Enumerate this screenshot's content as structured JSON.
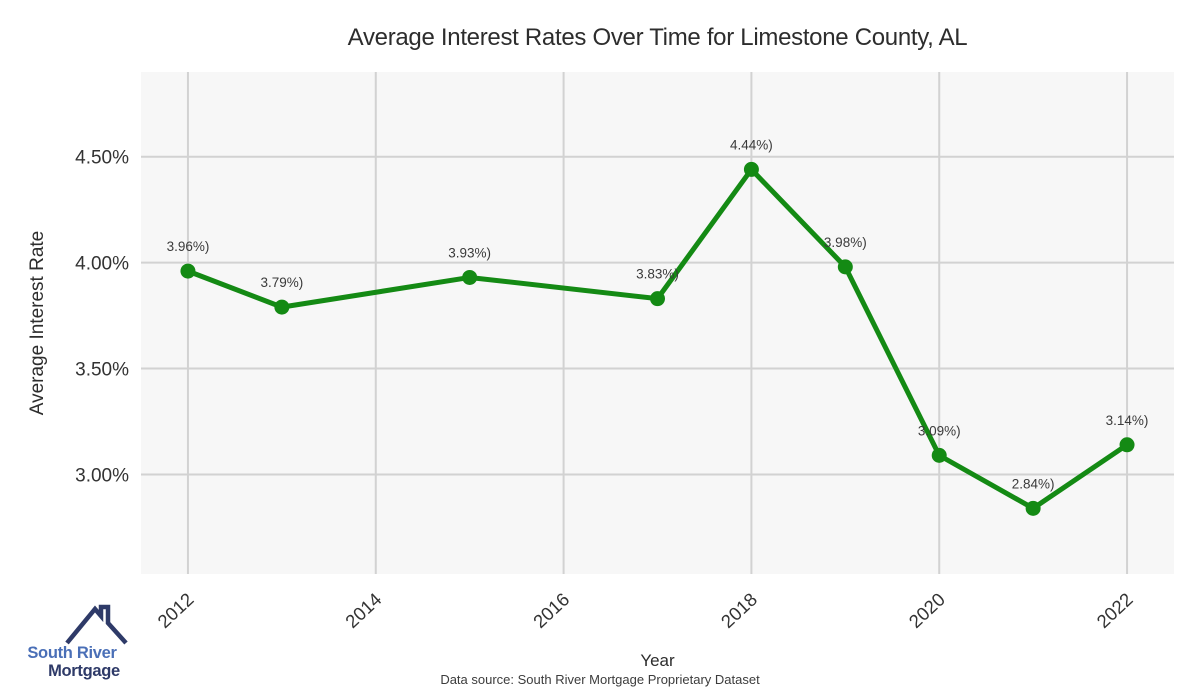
{
  "page": {
    "title": "Average Interest Rates Over Time for Limestone County, AL",
    "x_axis_label": "Year",
    "y_axis_label": "Average Interest Rate",
    "footnote": "Data source: South River Mortgage Proprietary Dataset"
  },
  "logo": {
    "line1": "South River",
    "line2": "Mortgage",
    "icon": "house-roof-icon"
  },
  "colors": {
    "line": "#148a14",
    "marker": "#148a14",
    "panel_bg": "#f7f7f7",
    "grid": "#d2d2d2",
    "tick_text": "#333333",
    "point_label_text": "#3a3a3a",
    "logo_primary": "#4a6fb7",
    "logo_secondary": "#2e3a68"
  },
  "chart_data": {
    "type": "line",
    "title": "Average Interest Rates Over Time for Limestone County, AL",
    "xlabel": "Year",
    "ylabel": "Average Interest Rate",
    "x": [
      2012,
      2013,
      2015,
      2017,
      2018,
      2019,
      2020,
      2021,
      2022
    ],
    "values": [
      3.96,
      3.79,
      3.93,
      3.83,
      4.44,
      3.98,
      3.09,
      2.84,
      3.14
    ],
    "point_labels": [
      "3.96%)",
      "3.79%)",
      "3.93%)",
      "3.83%)",
      "4.44%)",
      "3.98%)",
      "3.09%)",
      "2.84%)",
      "3.14%)"
    ],
    "x_ticks": [
      2012,
      2014,
      2016,
      2018,
      2020,
      2022
    ],
    "x_tick_labels": [
      "2012",
      "2014",
      "2016",
      "2018",
      "2020",
      "2022"
    ],
    "y_tick_values": [
      4.5,
      4.0,
      3.5,
      3.0
    ],
    "y_tick_labels": [
      "4.50%",
      "4.00%",
      "3.50%",
      "3.00%"
    ],
    "xlim": [
      2011.5,
      2022.5
    ],
    "ylim": [
      2.53,
      4.9
    ],
    "grid": true,
    "legend": false
  }
}
